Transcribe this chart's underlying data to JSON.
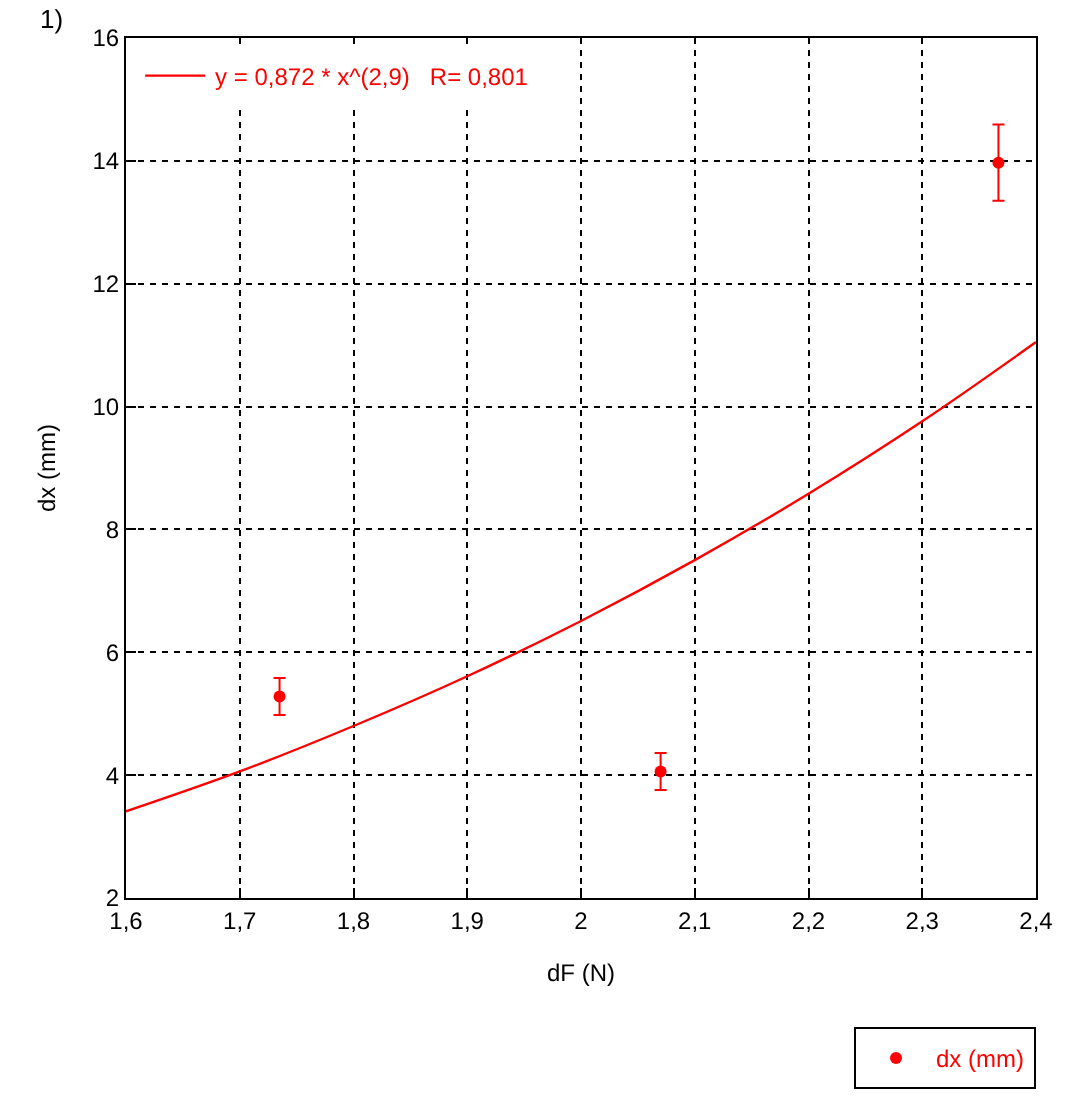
{
  "chart_data": {
    "type": "scatter",
    "xlabel": "dF (N)",
    "ylabel": "dx (mm)",
    "annotations": [
      "1)"
    ],
    "xlim": [
      1.6,
      2.4
    ],
    "ylim": [
      2,
      16
    ],
    "xticks": [
      {
        "value": 1.6,
        "label": "1,6"
      },
      {
        "value": 1.7,
        "label": "1,7"
      },
      {
        "value": 1.8,
        "label": "1,8"
      },
      {
        "value": 1.9,
        "label": "1,9"
      },
      {
        "value": 2,
        "label": "2"
      },
      {
        "value": 2.1,
        "label": "2,1"
      },
      {
        "value": 2.2,
        "label": "2,2"
      },
      {
        "value": 2.3,
        "label": "2,3"
      },
      {
        "value": 2.4,
        "label": "2,4"
      }
    ],
    "yticks": [
      2,
      4,
      6,
      8,
      10,
      12,
      14,
      16
    ],
    "grid": true,
    "legend": "bottom right",
    "marker": "circle",
    "series": [
      {
        "name": "dx (mm)",
        "color": "#ff0000",
        "x": [
          1.735,
          2.07,
          2.367
        ],
        "values": [
          5.28,
          4.06,
          13.97
        ],
        "errors": [
          0.3,
          0.3,
          0.62
        ]
      },
      {
        "name": "y = 0,872 * x^(2,9)   R= 0,801",
        "type": "line",
        "marker": "none",
        "color": "#ff0000",
        "x": [
          1.6,
          1.7,
          1.8,
          1.9,
          2.0,
          2.1,
          2.2,
          2.3,
          2.4
        ],
        "values": [
          3.41,
          4.06,
          4.8,
          5.61,
          6.51,
          7.5,
          8.58,
          9.76,
          11.05
        ]
      }
    ]
  }
}
